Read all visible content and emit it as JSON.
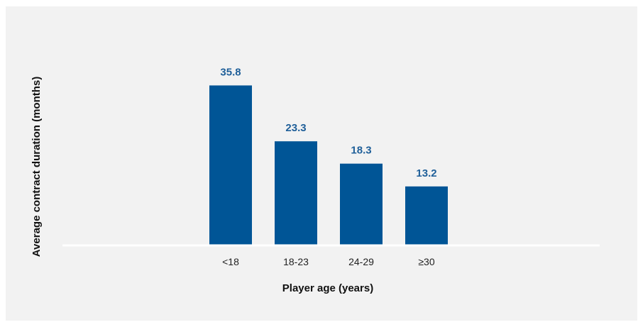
{
  "chart_data": {
    "type": "bar",
    "title": "",
    "xlabel": "Player age (years)",
    "ylabel": "Average contract duration (months)",
    "categories": [
      "<18",
      "18-23",
      "24-29",
      "≥30"
    ],
    "values": [
      35.8,
      23.3,
      18.3,
      13.2
    ],
    "value_labels": [
      "35.8",
      "23.3",
      "18.3",
      "13.2"
    ],
    "ylim": [
      0,
      40
    ],
    "grid": false,
    "legend": "none",
    "colors": {
      "bar": "#005596",
      "value_label": "#1f5f99",
      "background": "#f2f2f2",
      "axis": "#ffffff"
    }
  }
}
